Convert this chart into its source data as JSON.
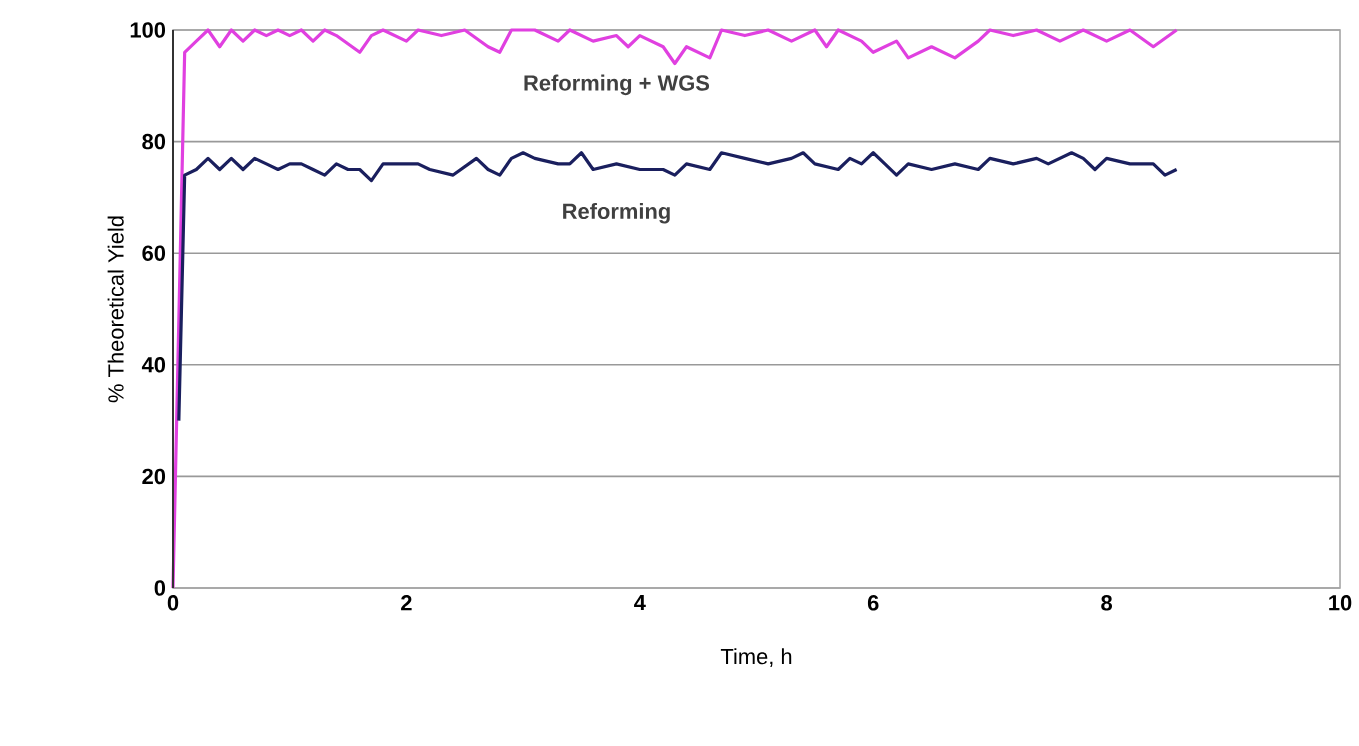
{
  "chart_data": {
    "type": "line",
    "xlabel": "Time, h",
    "ylabel": "%  Theoretical Yield",
    "xlim": [
      0,
      10
    ],
    "ylim": [
      0,
      100
    ],
    "xticks": [
      0,
      2,
      4,
      6,
      8,
      10
    ],
    "yticks": [
      0,
      20,
      40,
      60,
      80,
      100
    ],
    "grid": "y",
    "marker": "none",
    "line_style": "solid",
    "series": [
      {
        "name": "Reforming + WGS",
        "color": "#e040e0",
        "x": [
          0,
          0.1,
          0.2,
          0.3,
          0.4,
          0.5,
          0.6,
          0.7,
          0.8,
          0.9,
          1.0,
          1.1,
          1.2,
          1.3,
          1.4,
          1.6,
          1.7,
          1.8,
          2.0,
          2.1,
          2.3,
          2.5,
          2.7,
          2.8,
          2.9,
          3.1,
          3.3,
          3.4,
          3.6,
          3.8,
          3.9,
          4.0,
          4.2,
          4.3,
          4.4,
          4.6,
          4.7,
          4.9,
          5.1,
          5.3,
          5.5,
          5.6,
          5.7,
          5.9,
          6.0,
          6.2,
          6.3,
          6.5,
          6.7,
          6.9,
          7.0,
          7.2,
          7.4,
          7.6,
          7.8,
          8.0,
          8.2,
          8.4,
          8.6
        ],
        "values": [
          0,
          96,
          98,
          100,
          97,
          100,
          98,
          100,
          99,
          100,
          99,
          100,
          98,
          100,
          99,
          96,
          99,
          100,
          98,
          100,
          99,
          100,
          97,
          96,
          100,
          100,
          98,
          100,
          98,
          99,
          97,
          99,
          97,
          94,
          97,
          95,
          100,
          99,
          100,
          98,
          100,
          97,
          100,
          98,
          96,
          98,
          95,
          97,
          95,
          98,
          100,
          99,
          100,
          98,
          100,
          98,
          100,
          97,
          100
        ]
      },
      {
        "name": "Reforming",
        "color": "#1a1f5e",
        "x": [
          0.05,
          0.1,
          0.2,
          0.3,
          0.4,
          0.5,
          0.6,
          0.7,
          0.8,
          0.9,
          1.0,
          1.1,
          1.2,
          1.3,
          1.4,
          1.5,
          1.6,
          1.7,
          1.8,
          2.0,
          2.1,
          2.2,
          2.4,
          2.6,
          2.7,
          2.8,
          2.9,
          3.0,
          3.1,
          3.3,
          3.4,
          3.5,
          3.6,
          3.8,
          4.0,
          4.2,
          4.3,
          4.4,
          4.6,
          4.7,
          4.9,
          5.1,
          5.3,
          5.4,
          5.5,
          5.7,
          5.8,
          5.9,
          6.0,
          6.1,
          6.2,
          6.3,
          6.5,
          6.7,
          6.9,
          7.0,
          7.2,
          7.4,
          7.5,
          7.7,
          7.8,
          7.9,
          8.0,
          8.2,
          8.4,
          8.5,
          8.6
        ],
        "values": [
          30,
          74,
          75,
          77,
          75,
          77,
          75,
          77,
          76,
          75,
          76,
          76,
          75,
          74,
          76,
          75,
          75,
          73,
          76,
          76,
          76,
          75,
          74,
          77,
          75,
          74,
          77,
          78,
          77,
          76,
          76,
          78,
          75,
          76,
          75,
          75,
          74,
          76,
          75,
          78,
          77,
          76,
          77,
          78,
          76,
          75,
          77,
          76,
          78,
          76,
          74,
          76,
          75,
          76,
          75,
          77,
          76,
          77,
          76,
          78,
          77,
          75,
          77,
          76,
          76,
          74,
          75
        ]
      }
    ]
  }
}
